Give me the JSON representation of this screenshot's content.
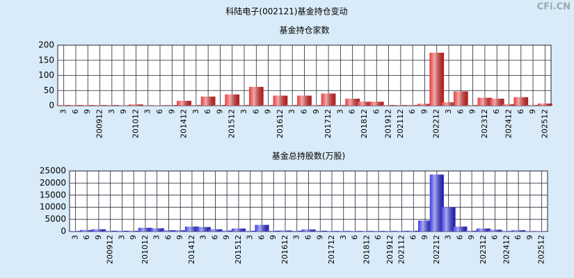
{
  "title": "科陆电子(002121)基金持仓变动",
  "watermark": "CFi.CN",
  "chart_data": [
    {
      "type": "bar",
      "title": "基金持仓家数",
      "color": "#e02828",
      "categories": [
        "3",
        "6",
        "9",
        "200912",
        "3",
        "9",
        "201012",
        "3",
        "6",
        "9",
        "201412",
        "3",
        "6",
        "9",
        "201512",
        "3",
        "6",
        "9",
        "201612",
        "3",
        "6",
        "9",
        "201712",
        "3",
        "6",
        "201812",
        "6",
        "201912",
        "202112",
        "6",
        "9",
        "202212",
        "3",
        "6",
        "9",
        "202312",
        "6",
        "202412",
        "6",
        "9",
        "202512"
      ],
      "values": [
        2,
        2,
        2,
        2,
        2,
        1,
        4,
        1,
        1,
        2,
        16,
        2,
        30,
        2,
        37,
        2,
        62,
        2,
        33,
        2,
        33,
        2,
        40,
        2,
        23,
        13,
        13,
        2,
        2,
        2,
        6,
        175,
        11,
        47,
        2,
        26,
        23,
        5,
        28,
        2,
        7
      ],
      "ylim": [
        0,
        200
      ],
      "yticks": [
        0,
        50,
        100,
        150,
        200
      ],
      "grid": true
    },
    {
      "type": "bar",
      "title": "基金总持股数(万股)",
      "color": "#2828e0",
      "categories": [
        "3",
        "6",
        "9",
        "200912",
        "3",
        "9",
        "201012",
        "3",
        "6",
        "9",
        "201412",
        "3",
        "6",
        "9",
        "201512",
        "3",
        "6",
        "9",
        "201612",
        "3",
        "6",
        "9",
        "201712",
        "3",
        "6",
        "201812",
        "6",
        "201912",
        "202112",
        "6",
        "9",
        "202212",
        "3",
        "6",
        "9",
        "202312",
        "6",
        "202412",
        "6",
        "9",
        "202512"
      ],
      "values": [
        200,
        600,
        900,
        300,
        300,
        300,
        1500,
        1300,
        500,
        500,
        2000,
        1800,
        900,
        400,
        1200,
        300,
        2700,
        300,
        400,
        300,
        800,
        300,
        200,
        200,
        200,
        200,
        200,
        200,
        200,
        300,
        4500,
        23500,
        10000,
        2000,
        300,
        1200,
        700,
        200,
        500,
        100,
        100
      ],
      "ylim": [
        0,
        25000
      ],
      "yticks": [
        0,
        5000,
        10000,
        15000,
        20000,
        25000
      ],
      "grid": true
    }
  ]
}
